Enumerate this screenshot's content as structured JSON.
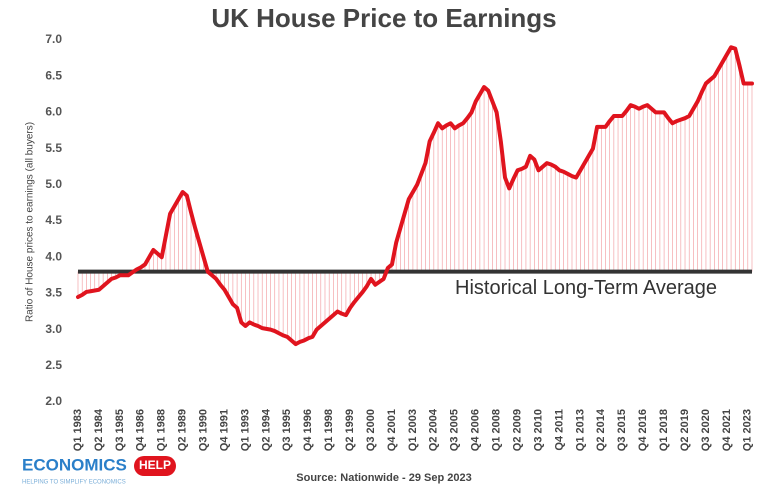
{
  "chart_data": {
    "type": "line",
    "title": "UK House Price to Earnings",
    "y_label": "Ratio of House prices to earnings (all buyers)",
    "annotation": "Historical Long-Term Average",
    "average_line": 3.8,
    "source": "Source: Nationwide - 29 Sep 2023",
    "color": "#e0141e",
    "average_color": "#333333",
    "drop_lines": true,
    "grid": false,
    "ylim": [
      2.0,
      7.0
    ],
    "yticks": [
      {
        "value": 2,
        "label": "2.0"
      },
      2.5,
      {
        "value": 3,
        "label": "3.0"
      },
      3.5,
      {
        "value": 4,
        "label": "4.0"
      },
      4.5,
      {
        "value": 5,
        "label": "5.0"
      },
      5.5,
      {
        "value": 6,
        "label": "6.0"
      },
      6.5,
      {
        "value": 7,
        "label": "7.0"
      }
    ],
    "categories": [
      "Q1 1983",
      null,
      null,
      null,
      null,
      "Q2 1984",
      null,
      null,
      null,
      null,
      "Q3 1985",
      null,
      null,
      null,
      null,
      "Q4 1986",
      null,
      null,
      null,
      null,
      "Q1 1988",
      null,
      null,
      null,
      null,
      "Q2 1989",
      null,
      null,
      null,
      null,
      "Q3 1990",
      null,
      null,
      null,
      null,
      "Q4 1991",
      null,
      null,
      null,
      null,
      "Q1 1993",
      null,
      null,
      null,
      null,
      "Q2 1994",
      null,
      null,
      null,
      null,
      "Q3 1995",
      null,
      null,
      null,
      null,
      "Q4 1996",
      null,
      null,
      null,
      null,
      "Q1 1998",
      null,
      null,
      null,
      null,
      "Q2 1999",
      null,
      null,
      null,
      null,
      "Q3 2000",
      null,
      null,
      null,
      null,
      "Q4 2001",
      null,
      null,
      null,
      null,
      "Q1 2003",
      null,
      null,
      null,
      null,
      "Q2 2004",
      null,
      null,
      null,
      null,
      "Q3 2005",
      null,
      null,
      null,
      null,
      "Q4 2006",
      null,
      null,
      null,
      null,
      "Q1 2008",
      null,
      null,
      null,
      null,
      "Q2 2009",
      null,
      null,
      null,
      null,
      "Q3 2010",
      null,
      null,
      null,
      null,
      "Q4 2011",
      null,
      null,
      null,
      null,
      "Q1 2013",
      null,
      null,
      null,
      null,
      "Q2 2014",
      null,
      null,
      null,
      null,
      "Q3 2015",
      null,
      null,
      null,
      null,
      "Q4 2016",
      null,
      null,
      null,
      null,
      "Q1 2018",
      null,
      null,
      null,
      null,
      "Q2 2019",
      null,
      null,
      null,
      null,
      "Q3 2020",
      null,
      null,
      null,
      null,
      "Q4 2021",
      null,
      null,
      null,
      null,
      "Q1 2023",
      null
    ],
    "values": [
      3.45,
      3.48,
      3.52,
      3.53,
      3.54,
      3.55,
      3.6,
      3.65,
      3.7,
      3.72,
      3.75,
      3.75,
      3.75,
      3.79,
      3.83,
      3.86,
      3.9,
      4.0,
      4.1,
      4.05,
      4.0,
      4.3,
      4.6,
      4.7,
      4.8,
      4.9,
      4.85,
      4.62,
      4.4,
      4.2,
      4.0,
      3.8,
      3.75,
      3.7,
      3.62,
      3.55,
      3.45,
      3.35,
      3.3,
      3.1,
      3.05,
      3.1,
      3.07,
      3.05,
      3.02,
      3.01,
      3.0,
      2.98,
      2.95,
      2.92,
      2.9,
      2.85,
      2.8,
      2.83,
      2.85,
      2.88,
      2.9,
      3.0,
      3.05,
      3.1,
      3.15,
      3.2,
      3.25,
      3.22,
      3.2,
      3.3,
      3.38,
      3.45,
      3.52,
      3.6,
      3.7,
      3.62,
      3.66,
      3.7,
      3.85,
      3.9,
      4.2,
      4.4,
      4.6,
      4.8,
      4.9,
      5.0,
      5.15,
      5.3,
      5.6,
      5.72,
      5.85,
      5.78,
      5.82,
      5.85,
      5.78,
      5.82,
      5.85,
      5.92,
      6.0,
      6.15,
      6.25,
      6.35,
      6.3,
      6.15,
      6.0,
      5.6,
      5.1,
      4.95,
      5.08,
      5.2,
      5.22,
      5.25,
      5.4,
      5.35,
      5.2,
      5.25,
      5.3,
      5.28,
      5.25,
      5.2,
      5.18,
      5.15,
      5.12,
      5.1,
      5.2,
      5.3,
      5.4,
      5.5,
      5.8,
      5.8,
      5.8,
      5.88,
      5.95,
      5.95,
      5.95,
      6.02,
      6.1,
      6.08,
      6.05,
      6.08,
      6.1,
      6.05,
      6.0,
      6.0,
      6.0,
      5.92,
      5.85,
      5.88,
      5.9,
      5.92,
      5.95,
      6.05,
      6.15,
      6.28,
      6.4,
      6.45,
      6.5,
      6.6,
      6.7,
      6.8,
      6.9,
      6.88,
      6.65,
      6.4,
      6.4,
      6.4
    ]
  },
  "logo": {
    "name": "ECONOMICS",
    "badge": "HELP",
    "tagline": "HELPING TO SIMPLIFY ECONOMICS"
  }
}
